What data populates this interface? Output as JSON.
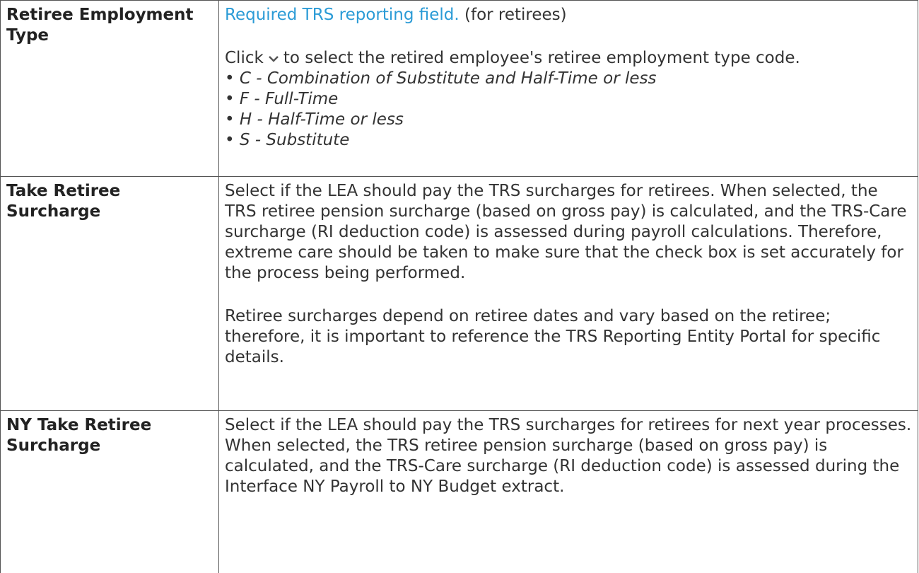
{
  "table": {
    "rows": [
      {
        "label": "Retiree Employment Type",
        "link": "Required TRS reporting field.",
        "link_note": "(for retirees)",
        "instruction_before": "Click",
        "instruction_after": "to select the retired employee's retiree employment type code.",
        "items": [
          "C - Combination of Substitute and Half-Time or less",
          "F - Full-Time",
          "H - Half-Time or less",
          "S - Substitute"
        ]
      },
      {
        "label": "Take Retiree Surcharge",
        "paragraphs": [
          "Select if the LEA should pay the TRS surcharges for retirees. When selected, the TRS retiree pension surcharge (based on gross pay) is calculated, and the TRS-Care surcharge (RI deduction code) is assessed during payroll calculations. Therefore, extreme care should be taken to make sure that the check box is set accurately for the process being performed.",
          "Retiree surcharges depend on retiree dates and vary based on the retiree; therefore, it is important to reference the TRS Reporting Entity Portal for specific details."
        ]
      },
      {
        "label": "NY Take Retiree Surcharge",
        "paragraphs": [
          "Select if the LEA should pay the TRS surcharges for retirees for next year processes. When selected, the TRS retiree pension surcharge (based on gross pay) is calculated, and the TRS-Care surcharge (RI deduction code) is assessed during the Interface NY Payroll to NY Budget extract."
        ]
      }
    ]
  }
}
